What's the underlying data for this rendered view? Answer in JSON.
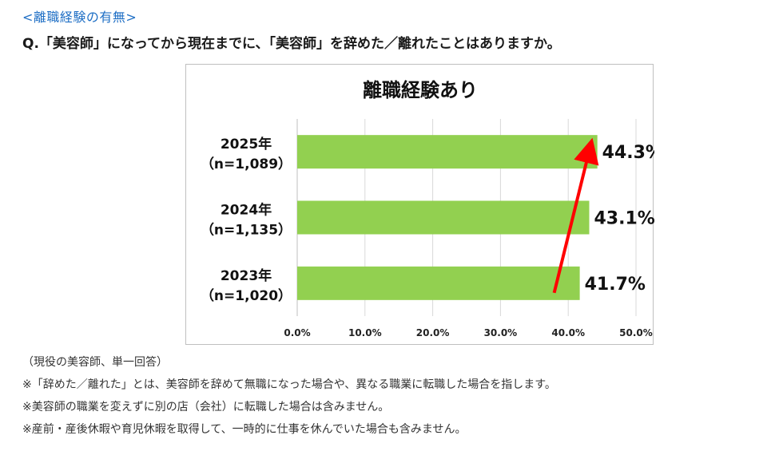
{
  "section_heading": "<離職経験の有無>",
  "question": "Q.「美容師」になってから現在までに、「美容師」を辞めた／離れたことはありますか。",
  "chart_data": {
    "type": "bar",
    "orientation": "horizontal",
    "title": "離職経験あり",
    "categories": [
      {
        "year": "2025年",
        "n": "（n=1,089）"
      },
      {
        "year": "2024年",
        "n": "（n=1,135）"
      },
      {
        "year": "2023年",
        "n": "（n=1,020）"
      }
    ],
    "values": [
      44.3,
      43.1,
      41.7
    ],
    "value_labels": [
      "44.3%",
      "43.1%",
      "41.7%"
    ],
    "xlim": [
      0,
      50
    ],
    "xticks": [
      0,
      10,
      20,
      30,
      40,
      50
    ],
    "xtick_labels": [
      "0.0%",
      "10.0%",
      "20.0%",
      "30.0%",
      "40.0%",
      "50.0%"
    ],
    "grid": true,
    "legend": "none",
    "bar_color": "#92d050",
    "annotation": {
      "type": "arrow",
      "from_category": "2023年",
      "to_category": "2025年",
      "color": "#ff0000"
    }
  },
  "notes": [
    "（現役の美容師、単一回答）",
    "※「辞めた／離れた」とは、美容師を辞めて無職になった場合や、異なる職業に転職した場合を指します。",
    "※美容師の職業を変えずに別の店（会社）に転職した場合は含みません。",
    "※産前・産後休暇や育児休暇を取得して、一時的に仕事を休んでいた場合も含みません。"
  ]
}
